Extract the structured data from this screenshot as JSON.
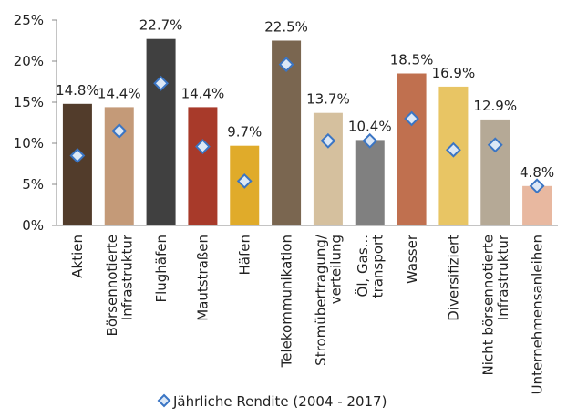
{
  "chart_data": {
    "type": "bar",
    "categories": [
      "Aktien",
      "Börsennotierte\nInfrastruktur",
      "Flughäfen",
      "Mautstraßen",
      "Häfen",
      "Telekommunikation",
      "Stromübertragung/\nverteilung",
      "Öl, Gas...\ntransport",
      "Wasser",
      "Diversifiziert",
      "Nicht börsennotierte\nInfrastruktur",
      "Unternehmensanleihen"
    ],
    "values": [
      14.8,
      14.4,
      22.7,
      14.4,
      9.7,
      22.5,
      13.7,
      10.4,
      18.5,
      16.9,
      12.9,
      4.8
    ],
    "value_labels": [
      "14.8%",
      "14.4%",
      "22.7%",
      "14.4%",
      "9.7%",
      "22.5%",
      "13.7%",
      "10.4%",
      "18.5%",
      "16.9%",
      "12.9%",
      "4.8%"
    ],
    "colors": [
      "#523c2b",
      "#c49a78",
      "#404040",
      "#a83a2a",
      "#e0ab2a",
      "#7a6650",
      "#d5c09e",
      "#808080",
      "#c0704f",
      "#e8c564",
      "#b5a996",
      "#e8b8a0"
    ],
    "markers": {
      "name": "Jährliche Rendite (2004 - 2017)",
      "color": "#3a75c4",
      "values": [
        8.5,
        11.5,
        17.3,
        9.6,
        5.4,
        19.6,
        10.3,
        10.3,
        13.0,
        9.2,
        9.8,
        4.8
      ]
    },
    "ylim": [
      0,
      25
    ],
    "yticks": [
      {
        "value": 0,
        "label": "0%"
      },
      {
        "value": 5,
        "label": "5%"
      },
      {
        "value": 10,
        "label": "10%"
      },
      {
        "value": 15,
        "label": "15%"
      },
      {
        "value": 20,
        "label": "20%"
      },
      {
        "value": 25,
        "label": "25%"
      }
    ],
    "legend": "bottom"
  }
}
